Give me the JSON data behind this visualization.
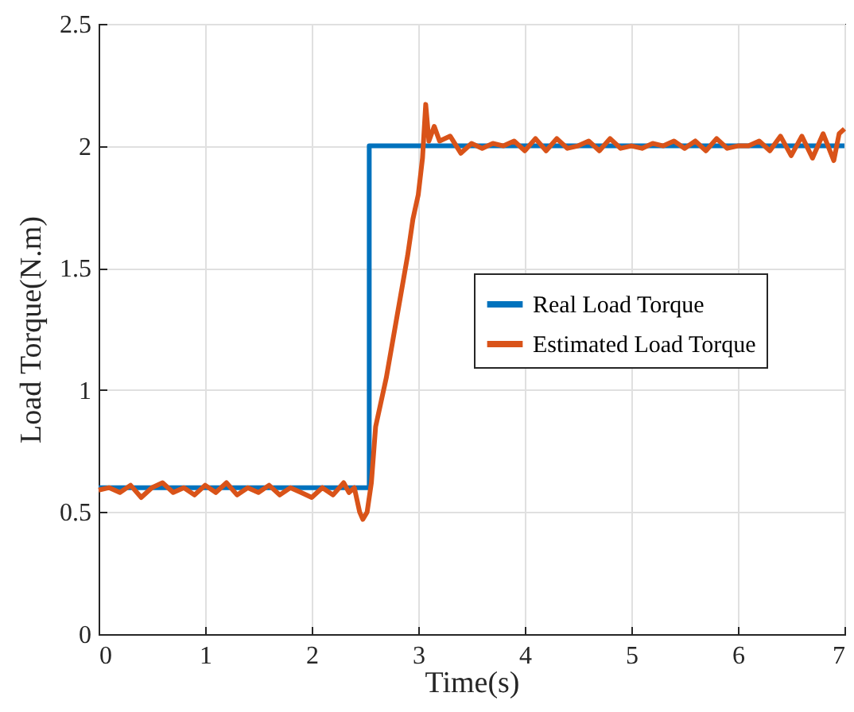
{
  "chart_data": {
    "type": "line",
    "xlabel": "Time(s)",
    "ylabel": "Load Torque(N.m)",
    "xlim": [
      0,
      7
    ],
    "xticks": [
      0,
      1,
      2,
      3,
      4,
      5,
      6,
      7
    ],
    "ylim": [
      0,
      2.5
    ],
    "yticks": [
      0,
      0.5,
      1,
      1.5,
      2,
      2.5
    ],
    "grid": true,
    "legend": "right",
    "series": [
      {
        "name": "Real Load Torque",
        "color": "#0072bd",
        "x": [
          0,
          2.54,
          2.54,
          7
        ],
        "values": [
          0.6,
          0.6,
          2,
          2
        ]
      },
      {
        "name": "Estimated Load Torque",
        "color": "#d95319",
        "x": [
          0,
          0.1,
          0.2,
          0.3,
          0.4,
          0.5,
          0.6,
          0.7,
          0.8,
          0.9,
          1.0,
          1.1,
          1.2,
          1.3,
          1.4,
          1.5,
          1.6,
          1.7,
          1.8,
          1.9,
          2.0,
          2.1,
          2.2,
          2.3,
          2.35,
          2.4,
          2.45,
          2.48,
          2.52,
          2.56,
          2.6,
          2.7,
          2.8,
          2.9,
          2.95,
          3.0,
          3.04,
          3.07,
          3.1,
          3.15,
          3.2,
          3.3,
          3.4,
          3.5,
          3.6,
          3.7,
          3.8,
          3.9,
          4.0,
          4.1,
          4.2,
          4.3,
          4.4,
          4.5,
          4.6,
          4.7,
          4.8,
          4.9,
          5.0,
          5.1,
          5.2,
          5.3,
          5.4,
          5.5,
          5.6,
          5.7,
          5.8,
          5.9,
          6.0,
          6.1,
          6.2,
          6.3,
          6.4,
          6.5,
          6.6,
          6.7,
          6.8,
          6.9,
          6.95,
          7.0
        ],
        "values": [
          0.59,
          0.6,
          0.58,
          0.61,
          0.56,
          0.6,
          0.62,
          0.58,
          0.6,
          0.57,
          0.61,
          0.58,
          0.62,
          0.57,
          0.6,
          0.58,
          0.61,
          0.57,
          0.6,
          0.58,
          0.56,
          0.6,
          0.57,
          0.62,
          0.58,
          0.6,
          0.5,
          0.47,
          0.5,
          0.62,
          0.85,
          1.05,
          1.3,
          1.55,
          1.7,
          1.8,
          1.95,
          2.17,
          2.02,
          2.08,
          2.02,
          2.04,
          1.97,
          2.01,
          1.99,
          2.01,
          2.0,
          2.02,
          1.98,
          2.03,
          1.98,
          2.03,
          1.99,
          2.0,
          2.02,
          1.98,
          2.03,
          1.99,
          2.0,
          1.99,
          2.01,
          2.0,
          2.02,
          1.99,
          2.02,
          1.98,
          2.03,
          1.99,
          2.0,
          2.0,
          2.02,
          1.98,
          2.04,
          1.96,
          2.04,
          1.95,
          2.05,
          1.94,
          2.05,
          2.07
        ]
      }
    ]
  }
}
